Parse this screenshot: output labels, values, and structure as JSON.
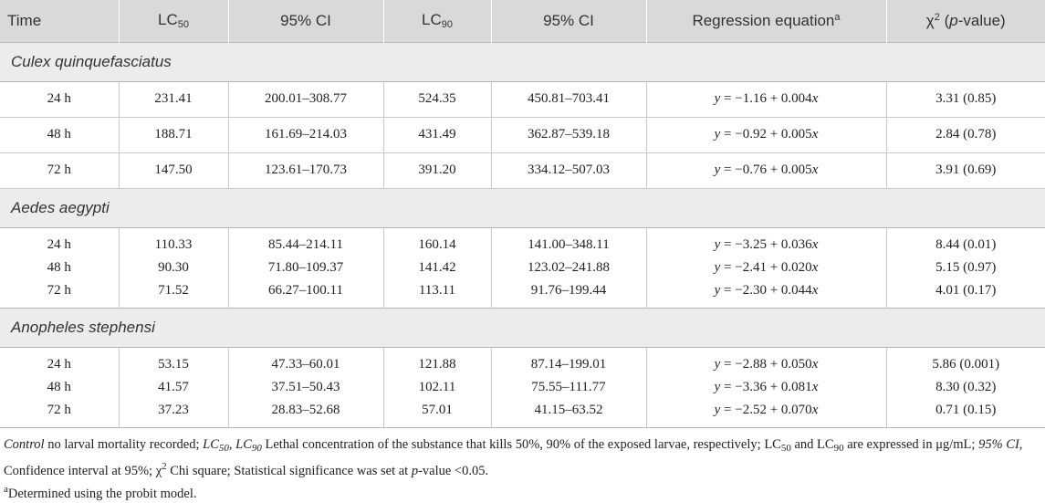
{
  "header": {
    "time": "Time",
    "lc50_main": "LC",
    "lc50_sub": "50",
    "ci1": "95% CI",
    "lc90_main": "LC",
    "lc90_sub": "90",
    "ci2": "95% CI",
    "regression": "Regression equation",
    "regression_sup": "a",
    "chi_main": "χ",
    "chi_sup": "2",
    "chi_open": " (",
    "chi_p": "p",
    "chi_close": "-value)"
  },
  "groups": [
    {
      "name": "Culex quinquefasciatus",
      "rows": [
        {
          "time": "24 h",
          "lc50": "231.41",
          "ci50": "200.01–308.77",
          "lc90": "524.35",
          "ci90": "450.81–703.41",
          "eq_y": "y",
          "eq_mid": " = −1.16 + 0.004",
          "eq_x": "x",
          "chi": "3.31 (0.85)"
        },
        {
          "time": "48 h",
          "lc50": "188.71",
          "ci50": "161.69–214.03",
          "lc90": "431.49",
          "ci90": "362.87–539.18",
          "eq_y": "y",
          "eq_mid": " = −0.92 + 0.005",
          "eq_x": "x",
          "chi": "2.84 (0.78)"
        },
        {
          "time": "72 h",
          "lc50": "147.50",
          "ci50": "123.61–170.73",
          "lc90": "391.20",
          "ci90": "334.12–507.03",
          "eq_y": "y",
          "eq_mid": " = −0.76 + 0.005",
          "eq_x": "x",
          "chi": "3.91 (0.69)"
        }
      ]
    },
    {
      "name": "Aedes aegypti",
      "rows": [
        {
          "time": "24 h",
          "lc50": "110.33",
          "ci50": "85.44–214.11",
          "lc90": "160.14",
          "ci90": "141.00–348.11",
          "eq_y": "y",
          "eq_mid": " = −3.25 + 0.036",
          "eq_x": "x",
          "chi": "8.44 (0.01)"
        },
        {
          "time": "48 h",
          "lc50": "90.30",
          "ci50": "71.80–109.37",
          "lc90": "141.42",
          "ci90": "123.02–241.88",
          "eq_y": "y",
          "eq_mid": " = −2.41 + 0.020",
          "eq_x": "x",
          "chi": "5.15 (0.97)"
        },
        {
          "time": "72 h",
          "lc50": "71.52",
          "ci50": "66.27–100.11",
          "lc90": "113.11",
          "ci90": "91.76–199.44",
          "eq_y": "y",
          "eq_mid": " = −2.30 + 0.044",
          "eq_x": "x",
          "chi": "4.01 (0.17)"
        }
      ]
    },
    {
      "name": "Anopheles stephensi",
      "rows": [
        {
          "time": "24 h",
          "lc50": "53.15",
          "ci50": "47.33–60.01",
          "lc90": "121.88",
          "ci90": "87.14–199.01",
          "eq_y": "y",
          "eq_mid": " = −2.88 + 0.050",
          "eq_x": "x",
          "chi": "5.86 (0.001)"
        },
        {
          "time": "48 h",
          "lc50": "41.57",
          "ci50": "37.51–50.43",
          "lc90": "102.11",
          "ci90": "75.55–111.77",
          "eq_y": "y",
          "eq_mid": " = −3.36 + 0.081",
          "eq_x": "x",
          "chi": "8.30 (0.32)"
        },
        {
          "time": "72 h",
          "lc50": "37.23",
          "ci50": "28.83–52.68",
          "lc90": "57.01",
          "ci90": "41.15–63.52",
          "eq_y": "y",
          "eq_mid": " = −2.52 + 0.070",
          "eq_x": "x",
          "chi": "0.71 (0.15)"
        }
      ]
    }
  ],
  "notes": {
    "control_term": "Control",
    "control_text": " no larval mortality recorded; ",
    "lc_term_a": "LC",
    "lc_term_a_sub": "50",
    "lc_comma": ", ",
    "lc_term_b": "LC",
    "lc_term_b_sub": "90",
    "lc_def": " Lethal concentration of the substance that kills 50%, 90% of the exposed larvae, respectively; ",
    "lc_expr_a": "LC",
    "lc_expr_a_sub": "50",
    "lc_expr_and": " and ",
    "lc_expr_b": "LC",
    "lc_expr_b_sub": "90",
    "lc_expr_text": " are expressed in μg/mL; ",
    "ci_term": "95% CI",
    "ci_text": ", Confidence interval at 95%; ",
    "chi_sym": "χ",
    "chi_sup": "2",
    "chi_text": " Chi square; Statistical significance was set at ",
    "p_term": "p",
    "p_text": "-value <0.05.",
    "footnote_mark": "a",
    "footnote_text": "Determined using the probit model."
  }
}
